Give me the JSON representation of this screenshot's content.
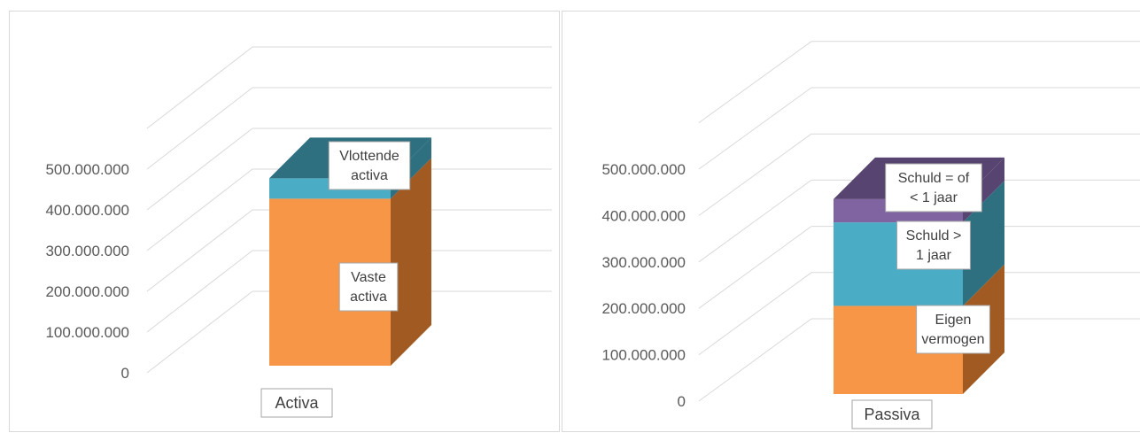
{
  "chart_data": [
    {
      "type": "bar",
      "stacked": true,
      "three_d": true,
      "categories": [
        "Activa"
      ],
      "series": [
        {
          "name": "Vaste activa",
          "values": [
            410000000
          ]
        },
        {
          "name": "Vlottende activa",
          "values": [
            50000000
          ]
        }
      ],
      "y_ticks": [
        "0",
        "100.000.000",
        "200.000.000",
        "300.000.000",
        "400.000.000",
        "500.000.000"
      ],
      "ylim": [
        0,
        500000000
      ],
      "title": "",
      "xlabel": "",
      "ylabel": "",
      "grid": true,
      "legend": "none"
    },
    {
      "type": "bar",
      "stacked": true,
      "three_d": true,
      "categories": [
        "Passiva"
      ],
      "series": [
        {
          "name": "Eigen vermogen",
          "values": [
            190000000
          ]
        },
        {
          "name": "Schuld > 1 jaar",
          "values": [
            180000000
          ]
        },
        {
          "name": "Schuld = of < 1 jaar",
          "values": [
            50000000
          ]
        }
      ],
      "y_ticks": [
        "0",
        "100.000.000",
        "200.000.000",
        "300.000.000",
        "400.000.000",
        "500.000.000"
      ],
      "ylim": [
        0,
        500000000
      ],
      "title": "",
      "xlabel": "",
      "ylabel": "",
      "grid": true,
      "legend": "none"
    }
  ],
  "colors": {
    "segment_1": "#f79646",
    "segment_1_side": "#a05a22",
    "segment_2": "#4bacc6",
    "segment_2_side": "#2e6f80",
    "segment_3": "#8064a2",
    "segment_3_side": "#574470",
    "grid": "#d9d9d9",
    "axis_text": "#595959",
    "label_border": "#a6a6a6",
    "label_text": "#404040"
  }
}
